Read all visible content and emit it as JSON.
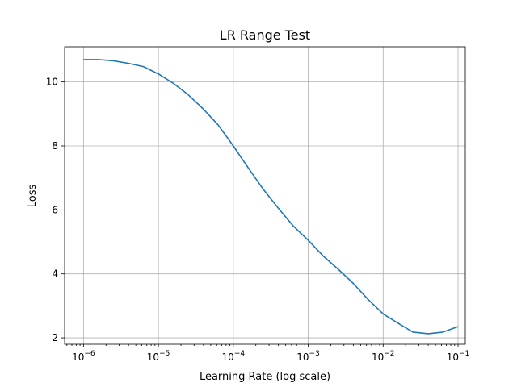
{
  "chart_data": {
    "type": "line",
    "title": "LR Range Test",
    "xlabel": "Learning Rate (log scale)",
    "ylabel": "Loss",
    "xscale": "log",
    "xlim": [
      5.6e-07,
      0.125
    ],
    "ylim": [
      1.8,
      11.1
    ],
    "grid": true,
    "x_ticks": [
      {
        "value": 1e-06,
        "base": "10",
        "exp": "−6"
      },
      {
        "value": 1e-05,
        "base": "10",
        "exp": "−5"
      },
      {
        "value": 0.0001,
        "base": "10",
        "exp": "−4"
      },
      {
        "value": 0.001,
        "base": "10",
        "exp": "−3"
      },
      {
        "value": 0.01,
        "base": "10",
        "exp": "−2"
      },
      {
        "value": 0.1,
        "base": "10",
        "exp": "−1"
      }
    ],
    "y_ticks": [
      {
        "value": 2,
        "label": "2"
      },
      {
        "value": 4,
        "label": "4"
      },
      {
        "value": 6,
        "label": "6"
      },
      {
        "value": 8,
        "label": "8"
      },
      {
        "value": 10,
        "label": "10"
      }
    ],
    "series": [
      {
        "color": "#1f77b4",
        "points": [
          [
            1e-06,
            10.7
          ],
          [
            1.6e-06,
            10.7
          ],
          [
            2.5e-06,
            10.66
          ],
          [
            4e-06,
            10.58
          ],
          [
            6.3e-06,
            10.48
          ],
          [
            1e-05,
            10.25
          ],
          [
            1.6e-05,
            9.95
          ],
          [
            2.5e-05,
            9.6
          ],
          [
            4e-05,
            9.15
          ],
          [
            6.3e-05,
            8.65
          ],
          [
            0.0001,
            8.0
          ],
          [
            0.00016,
            7.3
          ],
          [
            0.00025,
            6.65
          ],
          [
            0.0004,
            6.05
          ],
          [
            0.00063,
            5.5
          ],
          [
            0.001,
            5.05
          ],
          [
            0.0016,
            4.55
          ],
          [
            0.0025,
            4.15
          ],
          [
            0.004,
            3.7
          ],
          [
            0.0063,
            3.2
          ],
          [
            0.01,
            2.75
          ],
          [
            0.016,
            2.45
          ],
          [
            0.025,
            2.18
          ],
          [
            0.04,
            2.13
          ],
          [
            0.063,
            2.18
          ],
          [
            0.1,
            2.35
          ]
        ]
      }
    ]
  }
}
